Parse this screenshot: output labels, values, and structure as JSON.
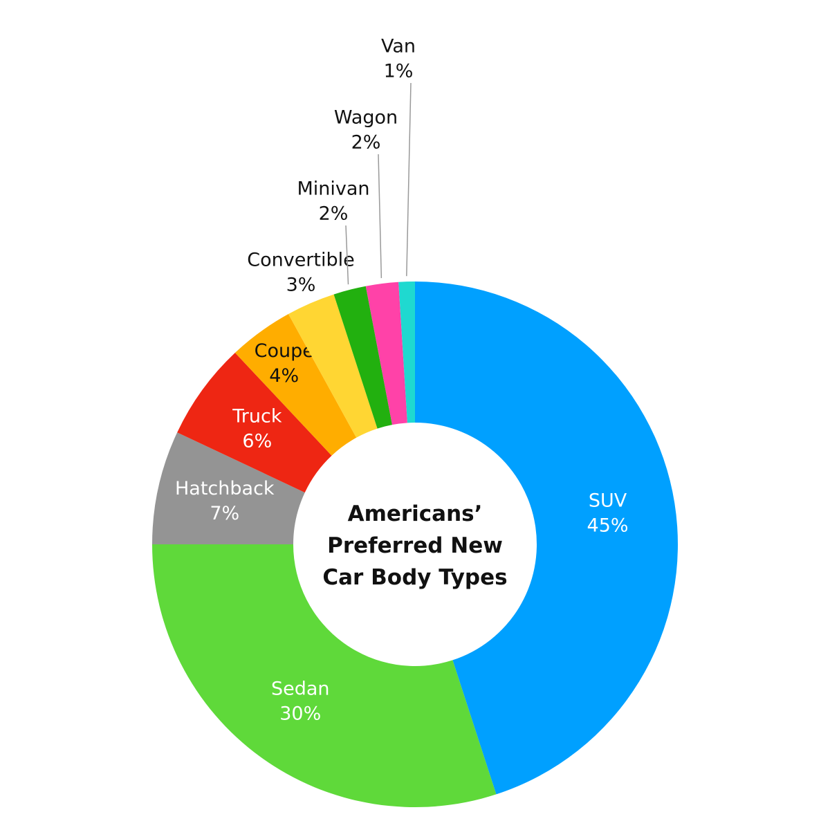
{
  "chart_data": {
    "type": "donut",
    "title": "Americans’ Preferred New Car Body Types",
    "categories": [
      "SUV",
      "Sedan",
      "Hatchback",
      "Truck",
      "Coupe",
      "Convertible",
      "Minivan",
      "Wagon",
      "Van"
    ],
    "values": [
      45,
      30,
      7,
      6,
      4,
      3,
      2,
      2,
      1
    ],
    "value_labels": [
      "45%",
      "30%",
      "7%",
      "6%",
      "4%",
      "3%",
      "2%",
      "2%",
      "1%"
    ],
    "colors": [
      "#00a0ff",
      "#5fd93a",
      "#949494",
      "#ee2613",
      "#ffad00",
      "#ffd633",
      "#22b00f",
      "#ff42a8",
      "#1fd9d0"
    ]
  }
}
